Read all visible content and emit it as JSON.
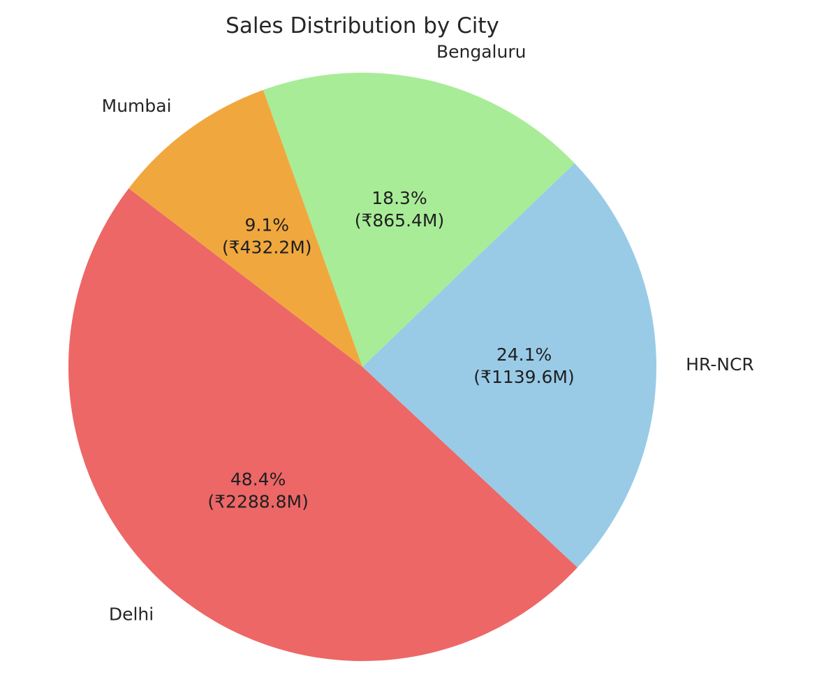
{
  "chart_data": {
    "type": "pie",
    "title": "Sales Distribution by City",
    "slices": [
      {
        "label": "HR-NCR",
        "value": 1139.6,
        "percent_label": "24.1%",
        "value_label": "(₹1139.6M)",
        "color": "#99cbe7"
      },
      {
        "label": "Bengaluru",
        "value": 865.4,
        "percent_label": "18.3%",
        "value_label": "(₹865.4M)",
        "color": "#a8ec98"
      },
      {
        "label": "Mumbai",
        "value": 432.2,
        "percent_label": "9.1%",
        "value_label": "(₹432.2M)",
        "color": "#f0a83e"
      },
      {
        "label": "Delhi",
        "value": 2288.8,
        "percent_label": "48.4%",
        "value_label": "(₹2288.8M)",
        "color": "#ed6767"
      }
    ],
    "start_angle_deg": -43,
    "direction": "counterclockwise",
    "legend": "none"
  }
}
